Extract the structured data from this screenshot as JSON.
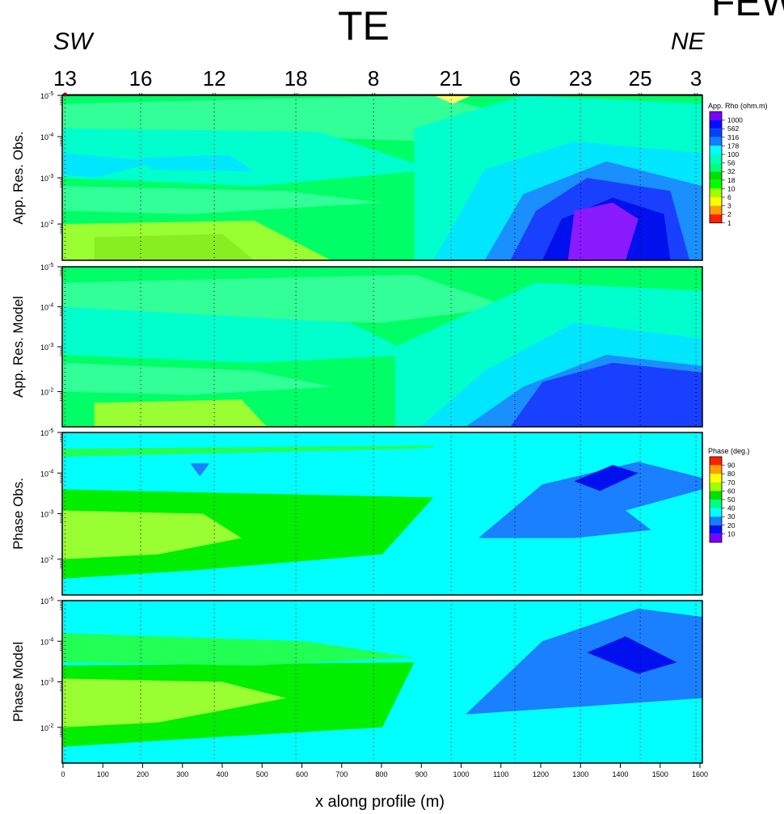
{
  "header": {
    "title": "TE",
    "title_right": "FEW",
    "left_direction": "SW",
    "right_direction": "NE"
  },
  "chart_data": {
    "type": "heatmap",
    "xlabel": "x along profile (m)",
    "xlim": [
      0,
      1600
    ],
    "x_ticks": [
      "0",
      "100",
      "200",
      "300",
      "400",
      "500",
      "600",
      "700",
      "800",
      "900",
      "1000",
      "1100",
      "1200",
      "1300",
      "1400",
      "1500",
      "1600"
    ],
    "stations": [
      {
        "label": "13",
        "x": 5
      },
      {
        "label": "16",
        "x": 195
      },
      {
        "label": "12",
        "x": 380
      },
      {
        "label": "18",
        "x": 585
      },
      {
        "label": "8",
        "x": 780
      },
      {
        "label": "21",
        "x": 975
      },
      {
        "label": "6",
        "x": 1135
      },
      {
        "label": "23",
        "x": 1300
      },
      {
        "label": "25",
        "x": 1450
      },
      {
        "label": "3",
        "x": 1590
      }
    ],
    "panels": [
      {
        "label": "App. Res. Obs.",
        "y_ticks": [
          {
            "base": "10",
            "exp": "-5",
            "p": 0
          },
          {
            "base": "10",
            "exp": "-4",
            "p": 0.25
          },
          {
            "base": "10",
            "exp": "-3",
            "p": 0.5
          },
          {
            "base": "10",
            "exp": "-2",
            "p": 0.78
          }
        ],
        "legend": {
          "title": "App. Rho (ohm.m)",
          "levels": [
            "1000",
            "562",
            "316",
            "178",
            "100",
            "56",
            "32",
            "18",
            "10",
            "6",
            "3",
            "2",
            "1"
          ]
        }
      },
      {
        "label": "App. Res. Model",
        "y_ticks": [
          {
            "base": "10",
            "exp": "-5",
            "p": 0
          },
          {
            "base": "10",
            "exp": "-4",
            "p": 0.25
          },
          {
            "base": "10",
            "exp": "-3",
            "p": 0.5
          },
          {
            "base": "10",
            "exp": "-2",
            "p": 0.78
          }
        ]
      },
      {
        "label": "Phase Obs.",
        "y_ticks": [
          {
            "base": "10",
            "exp": "-5",
            "p": 0
          },
          {
            "base": "10",
            "exp": "-4",
            "p": 0.25
          },
          {
            "base": "10",
            "exp": "-3",
            "p": 0.5
          },
          {
            "base": "10",
            "exp": "-2",
            "p": 0.78
          }
        ],
        "legend": {
          "title": "Phase (deg.)",
          "levels": [
            "90",
            "80",
            "70",
            "60",
            "50",
            "40",
            "30",
            "20",
            "10"
          ]
        }
      },
      {
        "label": "Phase Model",
        "y_ticks": [
          {
            "base": "10",
            "exp": "-5",
            "p": 0
          },
          {
            "base": "10",
            "exp": "-4",
            "p": 0.25
          },
          {
            "base": "10",
            "exp": "-3",
            "p": 0.5
          },
          {
            "base": "10",
            "exp": "-2",
            "p": 0.78
          }
        ]
      }
    ]
  },
  "colors": {
    "rho_scale": [
      "#7b00ff",
      "#0010ff",
      "#0040ff",
      "#1080ff",
      "#00ffff",
      "#00ffc0",
      "#00ff80",
      "#00e000",
      "#00ff00",
      "#a0ff00",
      "#ffff00",
      "#ffa000",
      "#ff2000"
    ],
    "phase_scale": [
      "#ff2000",
      "#ffa000",
      "#ffff00",
      "#a0ff00",
      "#00e000",
      "#00ff80",
      "#00ffff",
      "#1080ff",
      "#0010ff",
      "#7b00ff"
    ],
    "rho_fill": {
      "base": "#00ff66",
      "band_light": "#33ff99",
      "band_teal": "#00ffcc",
      "band_yg": "#99ff33",
      "band_lime": "#88ee22",
      "cyan": "#00e6ff",
      "sky": "#1a90ff",
      "blue": "#1a40ff",
      "deep": "#0010ee",
      "purple": "#8a1aff",
      "yellow": "#ffff66"
    },
    "phase_fill": {
      "green": "#00ee00",
      "light": "#22ff55",
      "cyan": "#00ffff",
      "sky": "#1a80ff",
      "blue": "#0010ee",
      "yg": "#99ff33"
    }
  }
}
